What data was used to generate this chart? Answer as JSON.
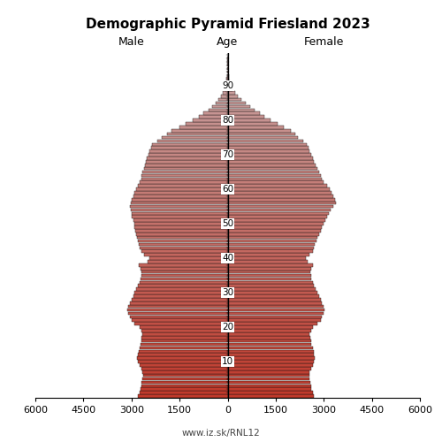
{
  "title": "Demographic Pyramid Friesland 2023",
  "label_male": "Male",
  "label_female": "Female",
  "label_age": "Age",
  "watermark": "www.iz.sk/RNL12",
  "xlim": 6000,
  "color_young": "#c0392b",
  "color_old": "#c8a8a8",
  "color_edge": "#111111",
  "age_ticks": [
    10,
    20,
    30,
    40,
    50,
    60,
    70,
    80,
    90
  ],
  "male": [
    2800,
    2750,
    2720,
    2700,
    2680,
    2660,
    2640,
    2650,
    2700,
    2750,
    2800,
    2820,
    2800,
    2780,
    2750,
    2720,
    2700,
    2680,
    2660,
    2700,
    2750,
    2900,
    3000,
    3050,
    3100,
    3120,
    3100,
    3050,
    3000,
    2950,
    2900,
    2850,
    2800,
    2750,
    2720,
    2700,
    2680,
    2720,
    2760,
    2500,
    2450,
    2600,
    2700,
    2750,
    2780,
    2800,
    2820,
    2850,
    2880,
    2900,
    2920,
    2950,
    2980,
    3000,
    3020,
    3050,
    3020,
    2980,
    2950,
    2900,
    2850,
    2800,
    2750,
    2700,
    2680,
    2650,
    2600,
    2580,
    2560,
    2520,
    2480,
    2440,
    2400,
    2350,
    2200,
    2050,
    1900,
    1750,
    1500,
    1300,
    1100,
    900,
    750,
    600,
    480,
    380,
    290,
    210,
    150,
    100,
    70,
    45,
    28,
    18,
    10,
    6,
    3,
    2,
    1,
    0
  ],
  "female": [
    2700,
    2650,
    2620,
    2600,
    2580,
    2560,
    2540,
    2550,
    2600,
    2650,
    2700,
    2720,
    2700,
    2680,
    2650,
    2620,
    2600,
    2580,
    2560,
    2600,
    2650,
    2800,
    2900,
    2950,
    3000,
    3020,
    3000,
    2950,
    2900,
    2850,
    2800,
    2750,
    2700,
    2650,
    2620,
    2600,
    2580,
    2620,
    2660,
    2500,
    2450,
    2550,
    2650,
    2700,
    2730,
    2760,
    2800,
    2850,
    2900,
    2950,
    3000,
    3050,
    3100,
    3150,
    3200,
    3300,
    3380,
    3350,
    3300,
    3250,
    3180,
    3100,
    3000,
    2950,
    2900,
    2850,
    2800,
    2750,
    2700,
    2650,
    2600,
    2560,
    2520,
    2480,
    2350,
    2200,
    2100,
    1980,
    1750,
    1550,
    1350,
    1150,
    1000,
    850,
    700,
    560,
    430,
    320,
    230,
    165,
    115,
    78,
    50,
    32,
    20,
    12,
    7,
    4,
    2,
    1
  ]
}
